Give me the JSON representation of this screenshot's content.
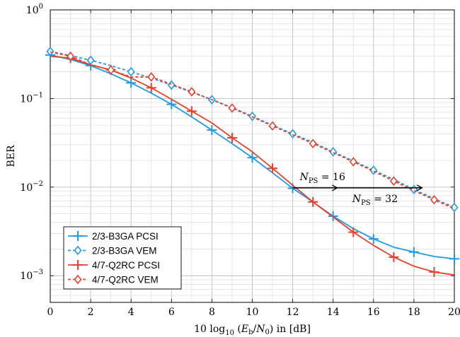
{
  "chart_data": {
    "type": "line",
    "xlabel": "10 log10 (Eb/N0) in [dB]",
    "ylabel": "BER",
    "xlim": [
      0,
      20
    ],
    "ylim": [
      0.0005,
      1
    ],
    "yscale": "log",
    "grid": true,
    "legend_position": "bottom-left",
    "x_ticks": [
      "0",
      "2",
      "4",
      "6",
      "8",
      "10",
      "12",
      "14",
      "16",
      "18",
      "20"
    ],
    "y_ticks": [
      {
        "base": "10",
        "exp": "0"
      },
      {
        "base": "10",
        "exp": "−1"
      },
      {
        "base": "10",
        "exp": "−2"
      },
      {
        "base": "10",
        "exp": "−3"
      }
    ],
    "series": [
      {
        "name": "2/3-B3GA PCSI",
        "color": "#1e9be6",
        "dashed": false,
        "marker": "plus",
        "x": [
          0,
          1,
          2,
          3,
          4,
          5,
          6,
          7,
          8,
          9,
          10,
          11,
          12,
          13,
          14,
          15,
          16,
          17,
          18,
          19,
          20
        ],
        "y": [
          0.31,
          0.275,
          0.235,
          0.19,
          0.15,
          0.115,
          0.086,
          0.062,
          0.044,
          0.031,
          0.0215,
          0.0145,
          0.0097,
          0.0068,
          0.0047,
          0.0034,
          0.0026,
          0.0021,
          0.00185,
          0.00165,
          0.00155
        ],
        "marker_x": [
          0,
          2,
          4,
          6,
          8,
          10,
          12,
          14,
          16,
          18,
          20
        ]
      },
      {
        "name": "2/3-B3GA VEM",
        "color": "#1e9be6",
        "dashed": true,
        "marker": "diamond",
        "x": [
          0,
          1,
          2,
          3,
          4,
          5,
          6,
          7,
          8,
          9,
          10,
          11,
          12,
          13,
          14,
          15,
          16,
          17,
          18,
          19,
          20
        ],
        "y": [
          0.34,
          0.305,
          0.27,
          0.235,
          0.2,
          0.17,
          0.142,
          0.118,
          0.097,
          0.079,
          0.063,
          0.05,
          0.04,
          0.032,
          0.025,
          0.0198,
          0.0155,
          0.0122,
          0.0094,
          0.0074,
          0.0059
        ],
        "marker_x": [
          0,
          2,
          4,
          6,
          8,
          10,
          12,
          14,
          16,
          18,
          20
        ]
      },
      {
        "name": "4/7-Q2RC PCSI",
        "color": "#e8412c",
        "dashed": false,
        "marker": "plus",
        "x": [
          0,
          1,
          2,
          3,
          4,
          5,
          6,
          7,
          8,
          9,
          10,
          11,
          12,
          13,
          14,
          15,
          16,
          17,
          18,
          19,
          20
        ],
        "y": [
          0.3,
          0.285,
          0.24,
          0.21,
          0.17,
          0.132,
          0.098,
          0.072,
          0.053,
          0.036,
          0.025,
          0.0163,
          0.0105,
          0.0068,
          0.0046,
          0.0031,
          0.0022,
          0.00162,
          0.00128,
          0.0011,
          0.00102
        ],
        "marker_x": [
          1,
          3,
          5,
          7,
          9,
          11,
          13,
          15,
          17,
          19
        ]
      },
      {
        "name": "4/7-Q2RC VEM",
        "color": "#e8412c",
        "dashed": true,
        "marker": "diamond",
        "x": [
          0,
          1,
          2,
          3,
          4,
          5,
          6,
          7,
          8,
          9,
          10,
          11,
          12,
          13,
          14,
          15,
          16,
          17,
          18,
          19,
          20
        ],
        "y": [
          0.335,
          0.3,
          0.24,
          0.21,
          0.175,
          0.175,
          0.145,
          0.119,
          0.097,
          0.078,
          0.062,
          0.049,
          0.039,
          0.031,
          0.0245,
          0.0193,
          0.0151,
          0.0117,
          0.0091,
          0.0072,
          0.0057
        ],
        "marker_x": [
          1,
          3,
          5,
          7,
          9,
          11,
          13,
          15,
          17,
          19
        ]
      }
    ],
    "annotations": [
      {
        "text": "N_PS = 16",
        "base": "N",
        "sub": "PS",
        "rest": " = 16"
      },
      {
        "text": "N_PS = 32",
        "base": "N",
        "sub": "PS",
        "rest": " = 32"
      }
    ]
  }
}
